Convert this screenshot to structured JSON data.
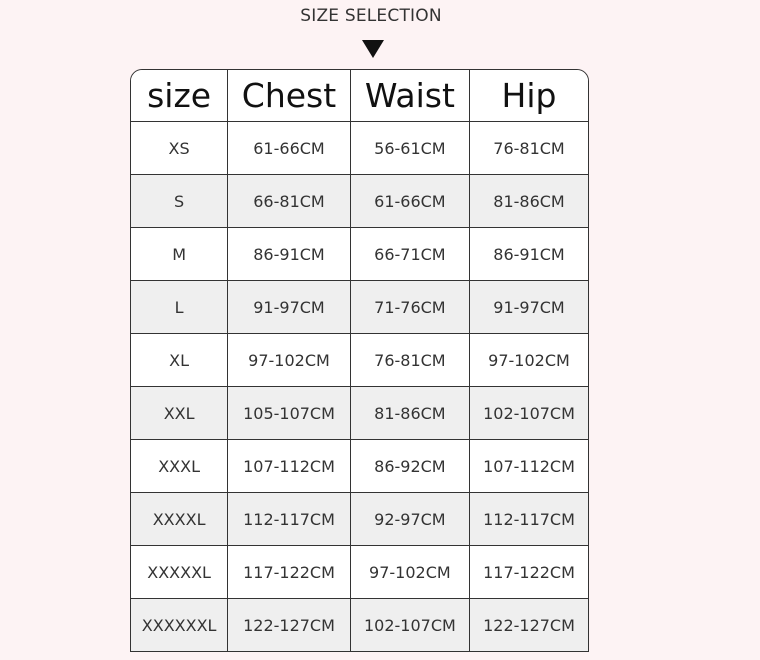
{
  "title": "SIZE SELECTION",
  "icons": {
    "arrow": "triangle-down-icon"
  },
  "colors": {
    "background": "#fdf3f4",
    "row_alt": "#efefef",
    "border": "#333333"
  },
  "table": {
    "headers": [
      "size",
      "Chest",
      "Waist",
      "Hip"
    ],
    "rows": [
      [
        "XS",
        "61-66CM",
        "56-61CM",
        "76-81CM"
      ],
      [
        "S",
        "66-81CM",
        "61-66CM",
        "81-86CM"
      ],
      [
        "M",
        "86-91CM",
        "66-71CM",
        "86-91CM"
      ],
      [
        "L",
        "91-97CM",
        "71-76CM",
        "91-97CM"
      ],
      [
        "XL",
        "97-102CM",
        "76-81CM",
        "97-102CM"
      ],
      [
        "XXL",
        "105-107CM",
        "81-86CM",
        "102-107CM"
      ],
      [
        "XXXL",
        "107-112CM",
        "86-92CM",
        "107-112CM"
      ],
      [
        "XXXXL",
        "112-117CM",
        "92-97CM",
        "112-117CM"
      ],
      [
        "XXXXXL",
        "117-122CM",
        "97-102CM",
        "117-122CM"
      ],
      [
        "XXXXXXL",
        "122-127CM",
        "102-107CM",
        "122-127CM"
      ]
    ]
  }
}
